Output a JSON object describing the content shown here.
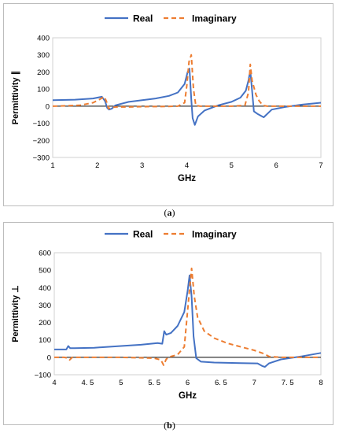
{
  "colors": {
    "real": "#4472c4",
    "imaginary": "#ed7d31",
    "axis": "#000000",
    "border": "#bdbdbd"
  },
  "chart_data": [
    {
      "type": "line",
      "panel": "a",
      "caption_open": "(",
      "caption_letter": "a",
      "caption_close": ")",
      "xlabel": "GHz",
      "ylabel": "Permittivity ∥",
      "xlim": [
        1,
        7
      ],
      "ylim": [
        -300,
        400
      ],
      "xticks": [
        1,
        2,
        3,
        4,
        5,
        6,
        7
      ],
      "xtick_labels": [
        "1",
        "2",
        "3",
        "4",
        "5",
        "6",
        "7"
      ],
      "yticks": [
        -300,
        -200,
        -100,
        0,
        100,
        200,
        300,
        400
      ],
      "ytick_labels": [
        "−300",
        "−200",
        "−100",
        "0",
        "100",
        "200",
        "300",
        "400"
      ],
      "grid": false,
      "legend": "top-center",
      "series": [
        {
          "name": "Real",
          "style": "solid",
          "x": [
            1.0,
            1.5,
            1.9,
            2.1,
            2.17,
            2.22,
            2.26,
            2.32,
            2.4,
            2.7,
            3.0,
            3.3,
            3.6,
            3.8,
            3.95,
            4.02,
            4.06,
            4.1,
            4.13,
            4.18,
            4.25,
            4.4,
            4.7,
            5.0,
            5.2,
            5.32,
            5.38,
            5.42,
            5.46,
            5.5,
            5.58,
            5.72,
            5.9,
            6.2,
            6.6,
            7.0
          ],
          "y": [
            35,
            38,
            45,
            55,
            30,
            -10,
            -20,
            -15,
            5,
            25,
            35,
            45,
            60,
            80,
            130,
            200,
            220,
            40,
            -70,
            -110,
            -60,
            -25,
            5,
            25,
            50,
            90,
            150,
            210,
            90,
            -30,
            -45,
            -65,
            -20,
            -5,
            10,
            20
          ]
        },
        {
          "name": "Imaginary",
          "style": "dashed",
          "x": [
            1.0,
            1.6,
            1.9,
            2.05,
            2.15,
            2.2,
            2.25,
            2.3,
            2.4,
            2.7,
            3.0,
            3.5,
            3.8,
            3.95,
            4.0,
            4.05,
            4.1,
            4.15,
            4.2,
            4.3,
            4.6,
            5.0,
            5.3,
            5.38,
            5.42,
            5.46,
            5.55,
            5.62,
            5.7,
            5.8,
            6.2,
            7.0
          ],
          "y": [
            0,
            5,
            20,
            40,
            55,
            30,
            -15,
            -10,
            -5,
            -5,
            -3,
            -2,
            0,
            20,
            120,
            260,
            300,
            100,
            5,
            0,
            0,
            0,
            5,
            80,
            245,
            150,
            65,
            30,
            5,
            0,
            0,
            0
          ]
        }
      ]
    },
    {
      "type": "line",
      "panel": "b",
      "caption_open": "(",
      "caption_letter": "b",
      "caption_close": ")",
      "xlabel": "GHz",
      "ylabel": "Permittivity ⊥",
      "xlim": [
        4,
        8
      ],
      "ylim": [
        -100,
        600
      ],
      "xticks": [
        4,
        4.5,
        5,
        5.5,
        6,
        6.5,
        7,
        7.5,
        8
      ],
      "xtick_labels": [
        "4",
        "4. 5",
        "5",
        "5. 5",
        "6",
        "6. 5",
        "7",
        "7. 5",
        "8"
      ],
      "yticks": [
        -100,
        0,
        100,
        200,
        300,
        400,
        500,
        600
      ],
      "ytick_labels": [
        "−100",
        "0",
        "100",
        "200",
        "300",
        "400",
        "500",
        "600"
      ],
      "grid": false,
      "legend": "top-center",
      "series": [
        {
          "name": "Real",
          "style": "solid",
          "x": [
            4.0,
            4.1,
            4.18,
            4.21,
            4.24,
            4.3,
            4.6,
            5.0,
            5.3,
            5.55,
            5.62,
            5.65,
            5.68,
            5.75,
            5.85,
            5.95,
            6.0,
            6.03,
            6.06,
            6.09,
            6.13,
            6.2,
            6.4,
            6.8,
            7.05,
            7.12,
            7.16,
            7.22,
            7.4,
            7.7,
            8.0
          ],
          "y": [
            45,
            45,
            45,
            65,
            52,
            52,
            55,
            65,
            72,
            82,
            78,
            150,
            130,
            140,
            180,
            260,
            380,
            470,
            350,
            120,
            -5,
            -25,
            -30,
            -33,
            -35,
            -50,
            -55,
            -35,
            -12,
            5,
            25
          ]
        },
        {
          "name": "Imaginary",
          "style": "dashed",
          "x": [
            4.0,
            4.15,
            4.2,
            4.23,
            4.27,
            4.35,
            5.0,
            5.5,
            5.6,
            5.64,
            5.68,
            5.75,
            5.85,
            5.95,
            6.02,
            6.06,
            6.1,
            6.15,
            6.25,
            6.4,
            6.6,
            6.8,
            7.0,
            7.15,
            7.22,
            7.4,
            7.7,
            8.0
          ],
          "y": [
            0,
            0,
            -5,
            -15,
            0,
            0,
            0,
            -5,
            -15,
            -45,
            -10,
            5,
            15,
            60,
            350,
            510,
            350,
            230,
            150,
            110,
            80,
            60,
            40,
            20,
            5,
            0,
            0,
            0
          ]
        }
      ]
    }
  ]
}
